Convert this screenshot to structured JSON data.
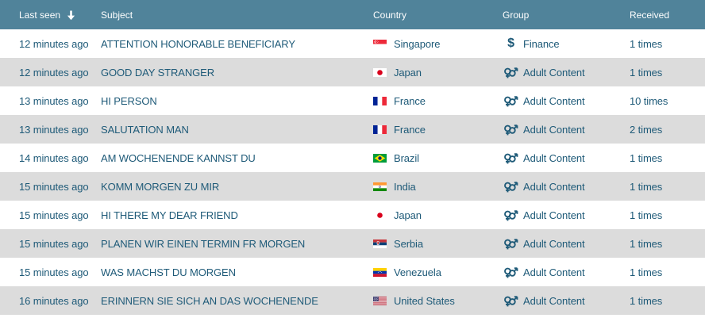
{
  "table": {
    "columns": [
      {
        "key": "last_seen",
        "label": "Last seen",
        "sorted": "desc"
      },
      {
        "key": "subject",
        "label": "Subject"
      },
      {
        "key": "country",
        "label": "Country"
      },
      {
        "key": "group",
        "label": "Group"
      },
      {
        "key": "received",
        "label": "Received"
      }
    ],
    "colors": {
      "header_bg": "#50839a",
      "header_text": "#ffffff",
      "row_text": "#1e5a78",
      "row_bg": "#ffffff",
      "row_alt_bg": "#dcdcdc"
    },
    "rows": [
      {
        "last_seen": "12 minutes ago",
        "subject": "ATTENTION HONORABLE BENEFICIARY",
        "country": "Singapore",
        "country_flag": "sg-flag-icon",
        "group": "Finance",
        "group_icon": "dollar-icon",
        "received": "1 times"
      },
      {
        "last_seen": "12 minutes ago",
        "subject": "GOOD DAY STRANGER",
        "country": "Japan",
        "country_flag": "jp-flag-icon",
        "group": "Adult Content",
        "group_icon": "gender-icon",
        "received": "1 times"
      },
      {
        "last_seen": "13 minutes ago",
        "subject": "HI PERSON",
        "country": "France",
        "country_flag": "fr-flag-icon",
        "group": "Adult Content",
        "group_icon": "gender-icon",
        "received": "10 times"
      },
      {
        "last_seen": "13 minutes ago",
        "subject": "SALUTATION MAN",
        "country": "France",
        "country_flag": "fr-flag-icon",
        "group": "Adult Content",
        "group_icon": "gender-icon",
        "received": "2 times"
      },
      {
        "last_seen": "14 minutes ago",
        "subject": "AM WOCHENENDE KANNST DU",
        "country": "Brazil",
        "country_flag": "br-flag-icon",
        "group": "Adult Content",
        "group_icon": "gender-icon",
        "received": "1 times"
      },
      {
        "last_seen": "15 minutes ago",
        "subject": "KOMM MORGEN ZU MIR",
        "country": "India",
        "country_flag": "in-flag-icon",
        "group": "Adult Content",
        "group_icon": "gender-icon",
        "received": "1 times"
      },
      {
        "last_seen": "15 minutes ago",
        "subject": "HI THERE MY DEAR FRIEND",
        "country": "Japan",
        "country_flag": "jp-flag-icon",
        "group": "Adult Content",
        "group_icon": "gender-icon",
        "received": "1 times"
      },
      {
        "last_seen": "15 minutes ago",
        "subject": "PLANEN WIR EINEN TERMIN FR MORGEN",
        "country": "Serbia",
        "country_flag": "rs-flag-icon",
        "group": "Adult Content",
        "group_icon": "gender-icon",
        "received": "1 times"
      },
      {
        "last_seen": "15 minutes ago",
        "subject": "WAS MACHST DU MORGEN",
        "country": "Venezuela",
        "country_flag": "ve-flag-icon",
        "group": "Adult Content",
        "group_icon": "gender-icon",
        "received": "1 times"
      },
      {
        "last_seen": "16 minutes ago",
        "subject": "ERINNERN SIE SICH AN DAS WOCHENENDE",
        "country": "United States",
        "country_flag": "us-flag-icon",
        "group": "Adult Content",
        "group_icon": "gender-icon",
        "received": "1 times"
      }
    ]
  }
}
